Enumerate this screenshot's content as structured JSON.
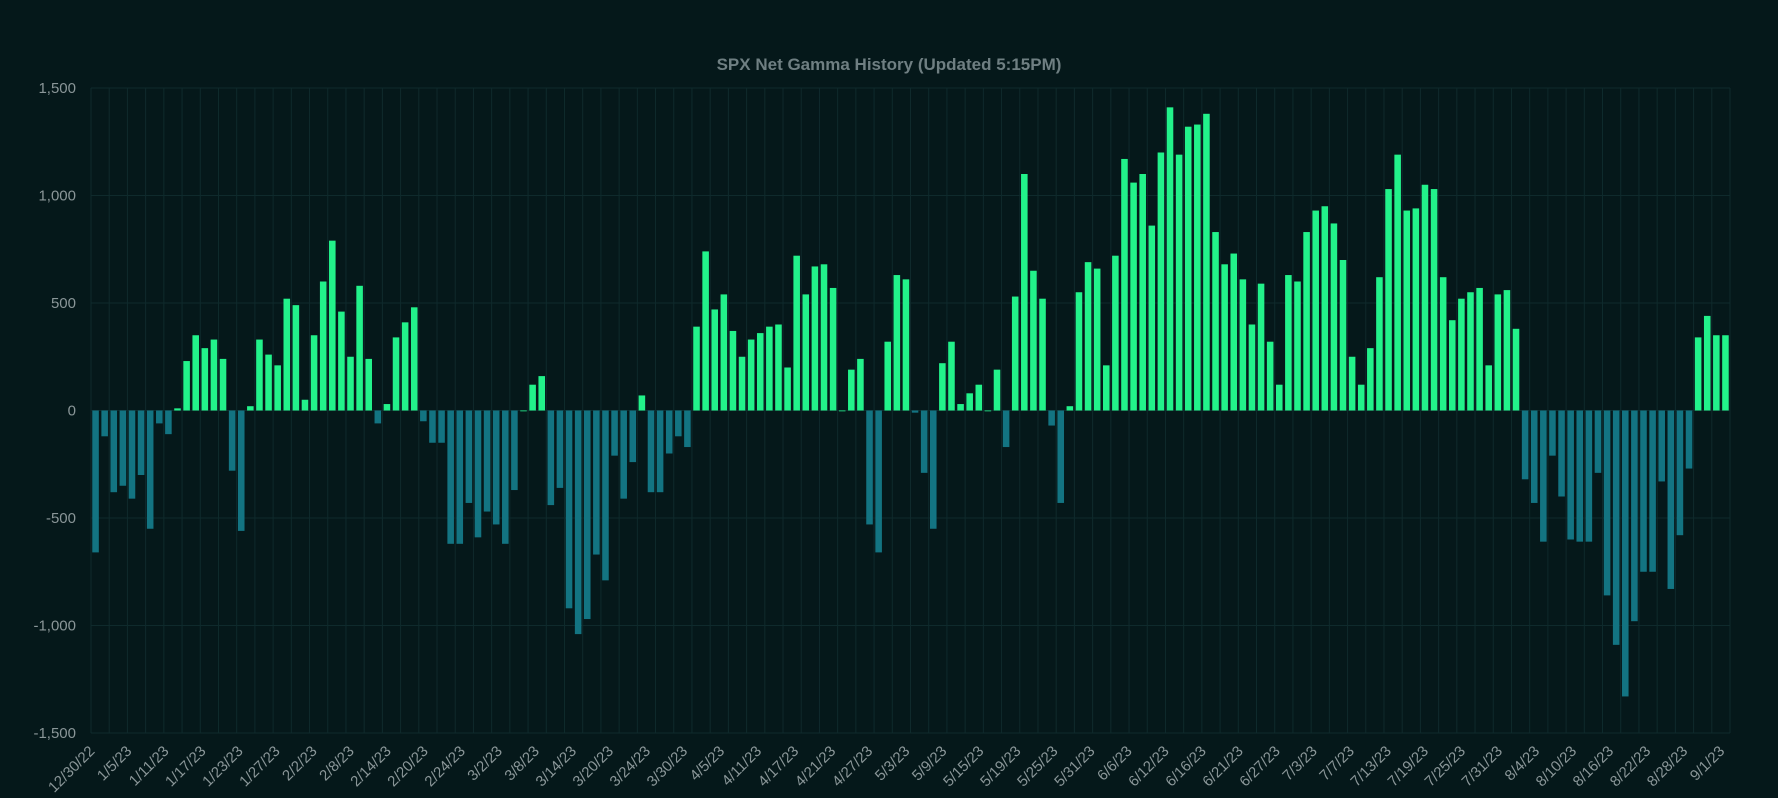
{
  "chart_data": {
    "type": "bar",
    "title": "SPX Net Gamma History (Updated 5:15PM)",
    "xlabel": "",
    "ylabel": "",
    "ylim": [
      -1500,
      1500
    ],
    "y_ticks": [
      1500,
      1000,
      500,
      0,
      -500,
      -1000,
      -1500
    ],
    "y_tick_labels": [
      "1,500",
      "1,000",
      "500",
      "0",
      "-500",
      "-1,000",
      "-1,500"
    ],
    "x_tick_labels": [
      "12/30/22",
      "1/5/23",
      "1/11/23",
      "1/17/23",
      "1/23/23",
      "1/27/23",
      "2/2/23",
      "2/8/23",
      "2/14/23",
      "2/20/23",
      "2/24/23",
      "3/2/23",
      "3/8/23",
      "3/14/23",
      "3/20/23",
      "3/24/23",
      "3/30/23",
      "4/5/23",
      "4/11/23",
      "4/17/23",
      "4/21/23",
      "4/27/23",
      "5/3/23",
      "5/9/23",
      "5/15/23",
      "5/19/23",
      "5/25/23",
      "5/31/23",
      "6/6/23",
      "6/12/23",
      "6/16/23",
      "6/21/23",
      "6/27/23",
      "7/3/23",
      "7/7/23",
      "7/13/23",
      "7/19/23",
      "7/25/23",
      "7/31/23",
      "8/4/23",
      "8/10/23",
      "8/16/23",
      "8/22/23",
      "8/28/23",
      "9/1/23"
    ],
    "positive_color": "#22f28a",
    "negative_color": "#137482",
    "grid": true,
    "legend": "none",
    "values": [
      -660,
      -120,
      -380,
      -350,
      -410,
      -300,
      -550,
      -60,
      -110,
      10,
      230,
      350,
      290,
      330,
      240,
      -280,
      -560,
      20,
      330,
      260,
      210,
      520,
      490,
      50,
      350,
      600,
      790,
      460,
      250,
      580,
      240,
      -60,
      30,
      340,
      410,
      480,
      -50,
      -150,
      -150,
      -620,
      -620,
      -430,
      -590,
      -470,
      -530,
      -620,
      -370,
      0,
      120,
      160,
      -440,
      -360,
      -920,
      -1040,
      -970,
      -670,
      -790,
      -210,
      -410,
      -240,
      70,
      -380,
      -380,
      -200,
      -120,
      -170,
      390,
      740,
      470,
      540,
      370,
      250,
      330,
      360,
      390,
      400,
      200,
      720,
      540,
      670,
      680,
      570,
      0,
      190,
      240,
      -530,
      -660,
      320,
      630,
      610,
      -10,
      -290,
      -550,
      220,
      320,
      30,
      80,
      120,
      0,
      190,
      -170,
      530,
      1100,
      650,
      520,
      -70,
      -430,
      20,
      550,
      690,
      660,
      210,
      720,
      1170,
      1060,
      1100,
      860,
      1200,
      1410,
      1190,
      1320,
      1330,
      1380,
      830,
      680,
      730,
      610,
      400,
      590,
      320,
      120,
      630,
      600,
      830,
      930,
      950,
      870,
      700,
      250,
      120,
      290,
      620,
      1030,
      1190,
      930,
      940,
      1050,
      1030,
      620,
      420,
      520,
      550,
      570,
      210,
      540,
      560,
      380,
      -320,
      -430,
      -610,
      -210,
      -400,
      -600,
      -610,
      -610,
      -290,
      -860,
      -1090,
      -1330,
      -980,
      -750,
      -750,
      -330,
      -830,
      -580,
      -270,
      340,
      440,
      350,
      350
    ]
  }
}
